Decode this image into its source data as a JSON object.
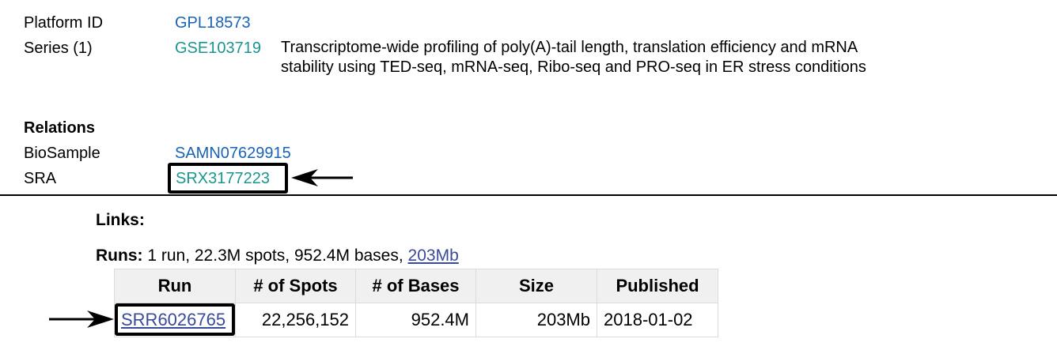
{
  "fields": {
    "platform_label": "Platform ID",
    "platform_value": "GPL18573",
    "series_label": "Series (1)",
    "series_id": "GSE103719",
    "series_title": "Transcriptome-wide profiling of poly(A)-tail length, translation efficiency and mRNA stability using TED-seq, mRNA-seq, Ribo-seq and PRO-seq in ER stress conditions"
  },
  "relations": {
    "heading": "Relations",
    "biosample_label": "BioSample",
    "biosample_value": "SAMN07629915",
    "sra_label": "SRA",
    "sra_value": "SRX3177223"
  },
  "links": {
    "heading": "Links:"
  },
  "runs": {
    "label": "Runs:",
    "summary": "1 run, 22.3M spots, 952.4M bases,",
    "size_link": "203Mb",
    "columns": [
      "Run",
      "# of Spots",
      "# of Bases",
      "Size",
      "Published"
    ],
    "rows": [
      {
        "run": "SRR6026765",
        "spots": "22,256,152",
        "bases": "952.4M",
        "size": "203Mb",
        "published": "2018-01-02"
      }
    ]
  },
  "colors": {
    "link_blue": "#1a62b8",
    "link_teal": "#1a968f",
    "link_dark": "#3a4a9a",
    "annotation": "#000000"
  },
  "icons": {
    "sra_arrow": "arrow-left-icon",
    "run_arrow": "arrow-right-icon"
  }
}
